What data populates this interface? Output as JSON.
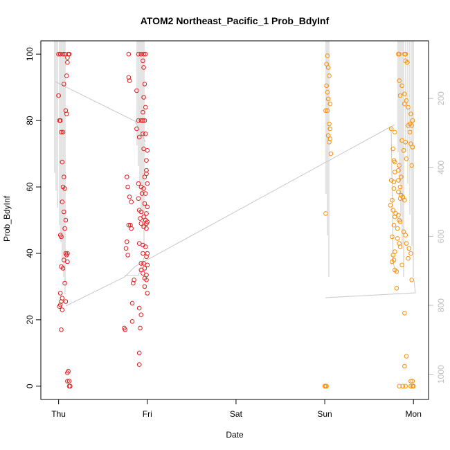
{
  "chart_data": {
    "type": "scatter",
    "title": "ATOM2 Northeast_Pacific_1 Prob_BdyInf",
    "xlabel": "Date",
    "ylabel": "Prob_BdyInf",
    "x_ticks": [
      "Thu",
      "Fri",
      "Sat",
      "Sun",
      "Mon"
    ],
    "xlim": [
      -0.2,
      4.17
    ],
    "ylim": [
      -4,
      104
    ],
    "y_ticks": [
      0,
      20,
      40,
      60,
      80,
      100
    ],
    "y2_ticks": [
      200,
      400,
      600,
      800,
      1000
    ],
    "y2lim": [
      33,
      1073
    ],
    "grid": false,
    "series": [
      {
        "color": "#e31a1c",
        "points": [
          [
            0.0,
            100
          ],
          [
            0.02,
            100
          ],
          [
            0.0,
            87.5
          ],
          [
            0.01,
            80
          ],
          [
            0.02,
            80
          ],
          [
            0.03,
            76.5
          ],
          [
            0.05,
            76.5
          ],
          [
            0.07,
            100
          ],
          [
            0.05,
            100
          ],
          [
            0.06,
            91
          ],
          [
            0.08,
            83
          ],
          [
            0.09,
            82
          ],
          [
            0.1,
            99
          ],
          [
            0.12,
            100
          ],
          [
            0.11,
            100
          ],
          [
            0.1,
            97.5
          ],
          [
            0.09,
            93.5
          ],
          [
            0.04,
            67.5
          ],
          [
            0.06,
            63
          ],
          [
            0.05,
            60
          ],
          [
            0.07,
            59.5
          ],
          [
            0.04,
            55.5
          ],
          [
            0.06,
            52.5
          ],
          [
            0.08,
            50
          ],
          [
            0.07,
            47.5
          ],
          [
            0.02,
            45.5
          ],
          [
            0.03,
            45
          ],
          [
            0.1,
            40
          ],
          [
            0.08,
            40
          ],
          [
            0.09,
            39.5
          ],
          [
            0.06,
            38
          ],
          [
            0.1,
            37.5
          ],
          [
            0.03,
            36
          ],
          [
            0.05,
            35.5
          ],
          [
            0.07,
            31
          ],
          [
            0.02,
            28
          ],
          [
            0.04,
            26.5
          ],
          [
            0.03,
            25.5
          ],
          [
            0.08,
            25.5
          ],
          [
            0.02,
            24.5
          ],
          [
            0.01,
            24
          ],
          [
            0.04,
            23
          ],
          [
            0.03,
            17
          ],
          [
            0.11,
            4.5
          ],
          [
            0.1,
            4
          ],
          [
            0.1,
            1.5
          ],
          [
            0.12,
            1.5
          ],
          [
            0.12,
            0
          ],
          [
            0.13,
            0
          ],
          [
            0.79,
            100
          ],
          [
            0.9,
            100
          ],
          [
            0.93,
            100
          ],
          [
            0.96,
            100
          ],
          [
            0.98,
            100
          ],
          [
            0.95,
            98
          ],
          [
            0.96,
            96
          ],
          [
            0.79,
            93
          ],
          [
            0.8,
            92
          ],
          [
            0.97,
            91
          ],
          [
            0.88,
            89
          ],
          [
            0.96,
            87
          ],
          [
            0.9,
            80
          ],
          [
            0.93,
            80
          ],
          [
            0.95,
            80
          ],
          [
            0.97,
            80
          ],
          [
            0.95,
            82.5
          ],
          [
            0.98,
            84
          ],
          [
            0.88,
            77.5
          ],
          [
            0.91,
            75
          ],
          [
            0.95,
            76
          ],
          [
            0.98,
            76
          ],
          [
            0.96,
            71.5
          ],
          [
            1.0,
            71
          ],
          [
            0.99,
            68
          ],
          [
            0.99,
            65
          ],
          [
            0.77,
            63
          ],
          [
            0.97,
            63
          ],
          [
            0.99,
            64
          ],
          [
            0.9,
            61
          ],
          [
            0.78,
            60
          ],
          [
            0.93,
            60
          ],
          [
            0.96,
            59.5
          ],
          [
            1.0,
            61
          ],
          [
            0.94,
            58
          ],
          [
            0.98,
            58
          ],
          [
            0.8,
            57
          ],
          [
            0.82,
            55.5
          ],
          [
            0.9,
            56.5
          ],
          [
            0.97,
            55
          ],
          [
            1.0,
            54
          ],
          [
            0.91,
            53
          ],
          [
            0.93,
            52.5
          ],
          [
            0.99,
            52
          ],
          [
            0.96,
            51
          ],
          [
            0.92,
            50.5
          ],
          [
            0.98,
            50
          ],
          [
            1.0,
            49.5
          ],
          [
            0.99,
            49
          ],
          [
            0.93,
            49
          ],
          [
            0.79,
            48.5
          ],
          [
            0.81,
            48.5
          ],
          [
            0.82,
            47.5
          ],
          [
            0.96,
            48
          ],
          [
            0.99,
            47.5
          ],
          [
            0.77,
            43.5
          ],
          [
            0.91,
            43
          ],
          [
            0.95,
            42.5
          ],
          [
            0.98,
            42
          ],
          [
            0.76,
            41.5
          ],
          [
            0.78,
            39.5
          ],
          [
            0.95,
            40
          ],
          [
            1.0,
            40
          ],
          [
            0.99,
            39
          ],
          [
            0.93,
            37
          ],
          [
            0.96,
            37
          ],
          [
            1.0,
            36.5
          ],
          [
            0.97,
            35.5
          ],
          [
            0.93,
            35
          ],
          [
            0.95,
            34
          ],
          [
            0.99,
            33.5
          ],
          [
            0.97,
            32.5
          ],
          [
            0.99,
            32
          ],
          [
            0.84,
            31
          ],
          [
            0.85,
            32
          ],
          [
            0.97,
            30
          ],
          [
            1.0,
            28
          ],
          [
            0.83,
            25
          ],
          [
            0.91,
            23.5
          ],
          [
            0.93,
            21.5
          ],
          [
            0.83,
            19.5
          ],
          [
            0.74,
            17.5
          ],
          [
            0.75,
            17
          ],
          [
            0.92,
            17.5
          ],
          [
            0.91,
            10
          ],
          [
            0.91,
            6.5
          ]
        ]
      },
      {
        "color": "#ff8c00",
        "points": [
          [
            3.03,
            99.5
          ],
          [
            3.02,
            97
          ],
          [
            3.04,
            96
          ],
          [
            3.05,
            93.5
          ],
          [
            3.02,
            90.5
          ],
          [
            3.03,
            88.5
          ],
          [
            3.04,
            86.5
          ],
          [
            3.06,
            85
          ],
          [
            3.01,
            83
          ],
          [
            3.03,
            83
          ],
          [
            3.05,
            79
          ],
          [
            3.06,
            77.5
          ],
          [
            3.04,
            75.5
          ],
          [
            3.06,
            74.5
          ],
          [
            3.05,
            73.5
          ],
          [
            3.07,
            70
          ],
          [
            3.01,
            52
          ],
          [
            3.0,
            0
          ],
          [
            3.02,
            0
          ],
          [
            3.01,
            0
          ],
          [
            3.83,
            100
          ],
          [
            3.84,
            100
          ],
          [
            3.9,
            100
          ],
          [
            3.91,
            100
          ],
          [
            3.91,
            98
          ],
          [
            3.93,
            97.5
          ],
          [
            3.84,
            92
          ],
          [
            3.87,
            90.5
          ],
          [
            3.9,
            88
          ],
          [
            3.92,
            86
          ],
          [
            3.85,
            87.5
          ],
          [
            3.9,
            85
          ],
          [
            3.94,
            84
          ],
          [
            3.97,
            82
          ],
          [
            3.99,
            80
          ],
          [
            3.94,
            78.5
          ],
          [
            3.96,
            79
          ],
          [
            3.98,
            78.5
          ],
          [
            3.75,
            77.5
          ],
          [
            3.79,
            76.5
          ],
          [
            3.96,
            76.5
          ],
          [
            3.87,
            74
          ],
          [
            3.91,
            73.5
          ],
          [
            3.97,
            73
          ],
          [
            3.99,
            72
          ],
          [
            3.77,
            71.5
          ],
          [
            3.89,
            71
          ],
          [
            3.92,
            68.5
          ],
          [
            3.78,
            68
          ],
          [
            3.79,
            67.5
          ],
          [
            3.84,
            66.5
          ],
          [
            3.98,
            66.5
          ],
          [
            3.83,
            65
          ],
          [
            3.79,
            64.5
          ],
          [
            3.86,
            63
          ],
          [
            3.83,
            62
          ],
          [
            3.75,
            62
          ],
          [
            3.78,
            61.5
          ],
          [
            3.85,
            60
          ],
          [
            3.78,
            59.5
          ],
          [
            3.83,
            58.5
          ],
          [
            3.86,
            57.5
          ],
          [
            3.88,
            57
          ],
          [
            3.85,
            56.5
          ],
          [
            3.9,
            56
          ],
          [
            3.76,
            56
          ],
          [
            3.74,
            54.5
          ],
          [
            3.77,
            53
          ],
          [
            3.8,
            52
          ],
          [
            3.83,
            51.5
          ],
          [
            3.79,
            51
          ],
          [
            3.84,
            50
          ],
          [
            3.85,
            49.5
          ],
          [
            3.78,
            48.5
          ],
          [
            3.82,
            47.5
          ],
          [
            3.89,
            46.5
          ],
          [
            3.91,
            45.5
          ],
          [
            3.76,
            45
          ],
          [
            3.82,
            44.5
          ],
          [
            3.84,
            43
          ],
          [
            3.92,
            43
          ],
          [
            3.95,
            41.5
          ],
          [
            3.85,
            42
          ],
          [
            3.79,
            40.5
          ],
          [
            3.77,
            39.5
          ],
          [
            3.97,
            40
          ],
          [
            3.94,
            38.5
          ],
          [
            3.78,
            38
          ],
          [
            3.76,
            37.5
          ],
          [
            3.87,
            36.5
          ],
          [
            3.79,
            35
          ],
          [
            3.81,
            34.5
          ],
          [
            3.98,
            32
          ],
          [
            3.81,
            29.5
          ],
          [
            3.9,
            22
          ],
          [
            3.92,
            9
          ],
          [
            3.9,
            6
          ],
          [
            3.84,
            0
          ],
          [
            3.88,
            0
          ],
          [
            3.91,
            0
          ],
          [
            3.97,
            0
          ],
          [
            3.99,
            0
          ],
          [
            4.0,
            0
          ],
          [
            3.97,
            1.5
          ],
          [
            3.99,
            1.5
          ]
        ]
      }
    ]
  }
}
